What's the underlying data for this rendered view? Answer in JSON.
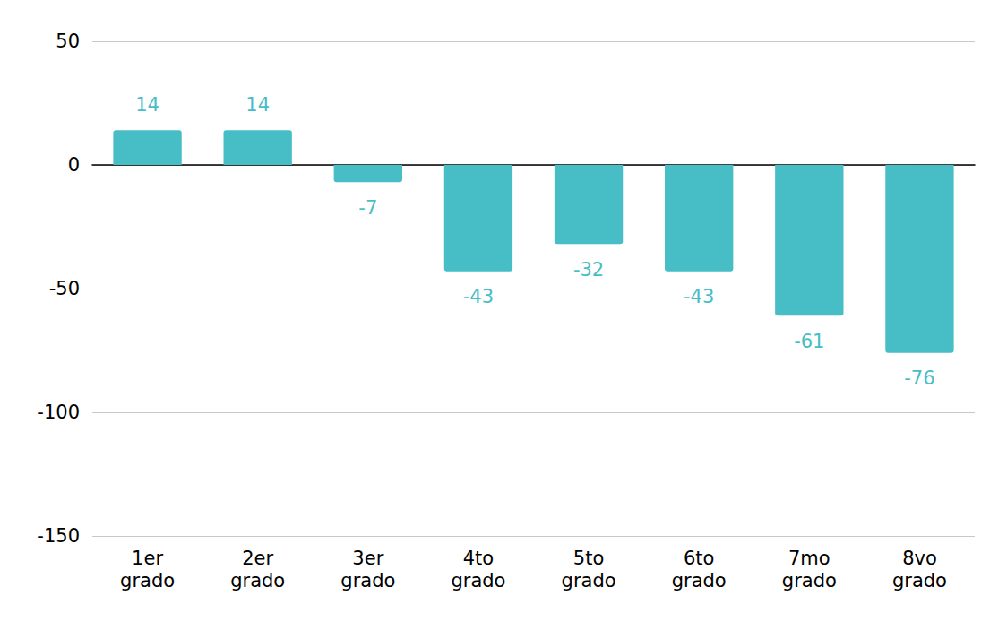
{
  "chart_data": {
    "type": "bar",
    "categories": [
      "1er grado",
      "2er grado",
      "3er grado",
      "4to grado",
      "5to grado",
      "6to grado",
      "7mo grado",
      "8vo grado"
    ],
    "values": [
      14,
      14,
      -7,
      -43,
      -32,
      -43,
      -61,
      -76
    ],
    "color": "#47bdc6",
    "ylim": [
      -150,
      50
    ],
    "yticks": [
      -150,
      -100,
      -50,
      0,
      50
    ],
    "grid": true,
    "data_labels": true
  }
}
